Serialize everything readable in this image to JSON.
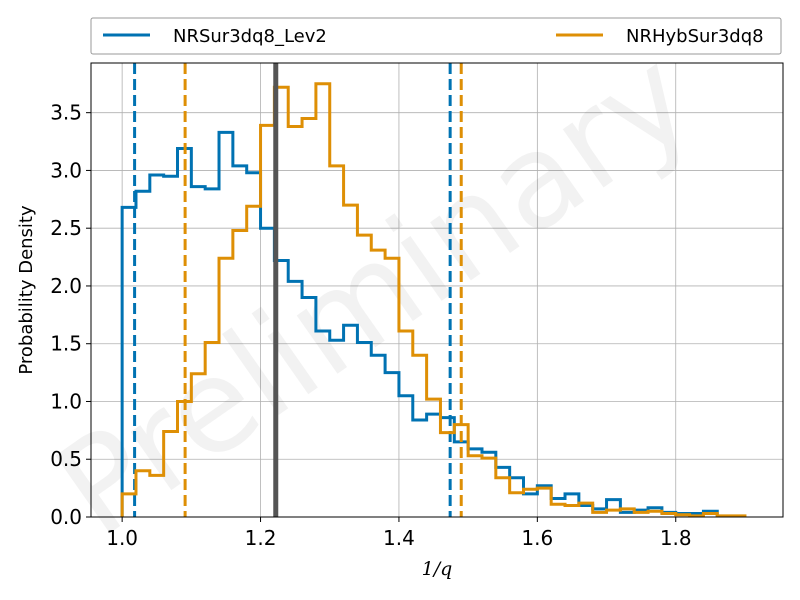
{
  "chart_data": {
    "type": "histogram",
    "title": "",
    "xlabel": "1/q",
    "ylabel": "Probability Density",
    "xlim": [
      0.955,
      1.955
    ],
    "ylim": [
      0.0,
      3.93
    ],
    "xticks": [
      1.0,
      1.2,
      1.4,
      1.6,
      1.8
    ],
    "xtick_labels": [
      "1.0",
      "1.2",
      "1.4",
      "1.6",
      "1.8"
    ],
    "yticks": [
      0.0,
      0.5,
      1.0,
      1.5,
      2.0,
      2.5,
      3.0,
      3.5
    ],
    "ytick_labels": [
      "0.0",
      "0.5",
      "1.0",
      "1.5",
      "2.0",
      "2.5",
      "3.0",
      "3.5"
    ],
    "grid": true,
    "legend_placement": "top, above plot",
    "watermark": "Preliminary",
    "reference_line": {
      "x": 1.222,
      "color": "#555555"
    },
    "series": [
      {
        "name": "NRSur3dq8_Lev2",
        "color": "#0072b2",
        "bin_edges": [
          1.0,
          1.02,
          1.04,
          1.06,
          1.08,
          1.1,
          1.12,
          1.14,
          1.16,
          1.18,
          1.2,
          1.22,
          1.24,
          1.26,
          1.28,
          1.3,
          1.32,
          1.34,
          1.36,
          1.38,
          1.4,
          1.42,
          1.44,
          1.46,
          1.48,
          1.5,
          1.52,
          1.54,
          1.56,
          1.58,
          1.6,
          1.62,
          1.64,
          1.66,
          1.68,
          1.7,
          1.72,
          1.74,
          1.76,
          1.78,
          1.8,
          1.82,
          1.84,
          1.86
        ],
        "densities": [
          2.68,
          2.82,
          2.96,
          2.95,
          3.19,
          2.86,
          2.84,
          3.33,
          3.04,
          2.98,
          2.5,
          2.22,
          2.04,
          1.9,
          1.61,
          1.53,
          1.66,
          1.51,
          1.4,
          1.25,
          1.05,
          0.84,
          0.89,
          0.86,
          0.65,
          0.59,
          0.56,
          0.43,
          0.34,
          0.2,
          0.27,
          0.16,
          0.2,
          0.1,
          0.07,
          0.15,
          0.04,
          0.06,
          0.08,
          0.04,
          0.03,
          0.03,
          0.05
        ],
        "ci_lower": 1.018,
        "ci_upper": 1.474
      },
      {
        "name": "NRHybSur3dq8",
        "color": "#de8f05",
        "bin_edges": [
          1.0,
          1.02,
          1.04,
          1.06,
          1.08,
          1.1,
          1.12,
          1.14,
          1.16,
          1.18,
          1.2,
          1.22,
          1.24,
          1.26,
          1.28,
          1.3,
          1.32,
          1.34,
          1.36,
          1.38,
          1.4,
          1.42,
          1.44,
          1.46,
          1.48,
          1.5,
          1.52,
          1.54,
          1.56,
          1.58,
          1.6,
          1.62,
          1.64,
          1.66,
          1.68,
          1.7,
          1.72,
          1.74,
          1.76,
          1.78,
          1.8,
          1.82,
          1.84,
          1.86,
          1.88,
          1.9
        ],
        "densities": [
          0.2,
          0.4,
          0.36,
          0.74,
          1.0,
          1.24,
          1.51,
          2.24,
          2.48,
          2.69,
          3.39,
          3.72,
          3.38,
          3.45,
          3.75,
          3.04,
          2.7,
          2.44,
          2.31,
          2.24,
          1.61,
          1.4,
          1.02,
          0.73,
          0.8,
          0.53,
          0.51,
          0.34,
          0.21,
          0.24,
          0.25,
          0.11,
          0.1,
          0.12,
          0.04,
          0.06,
          0.07,
          0.04,
          0.05,
          0.03,
          0.02,
          0.01,
          0.03,
          0.01,
          0.01
        ],
        "ci_lower": 1.091,
        "ci_upper": 1.49
      }
    ]
  }
}
